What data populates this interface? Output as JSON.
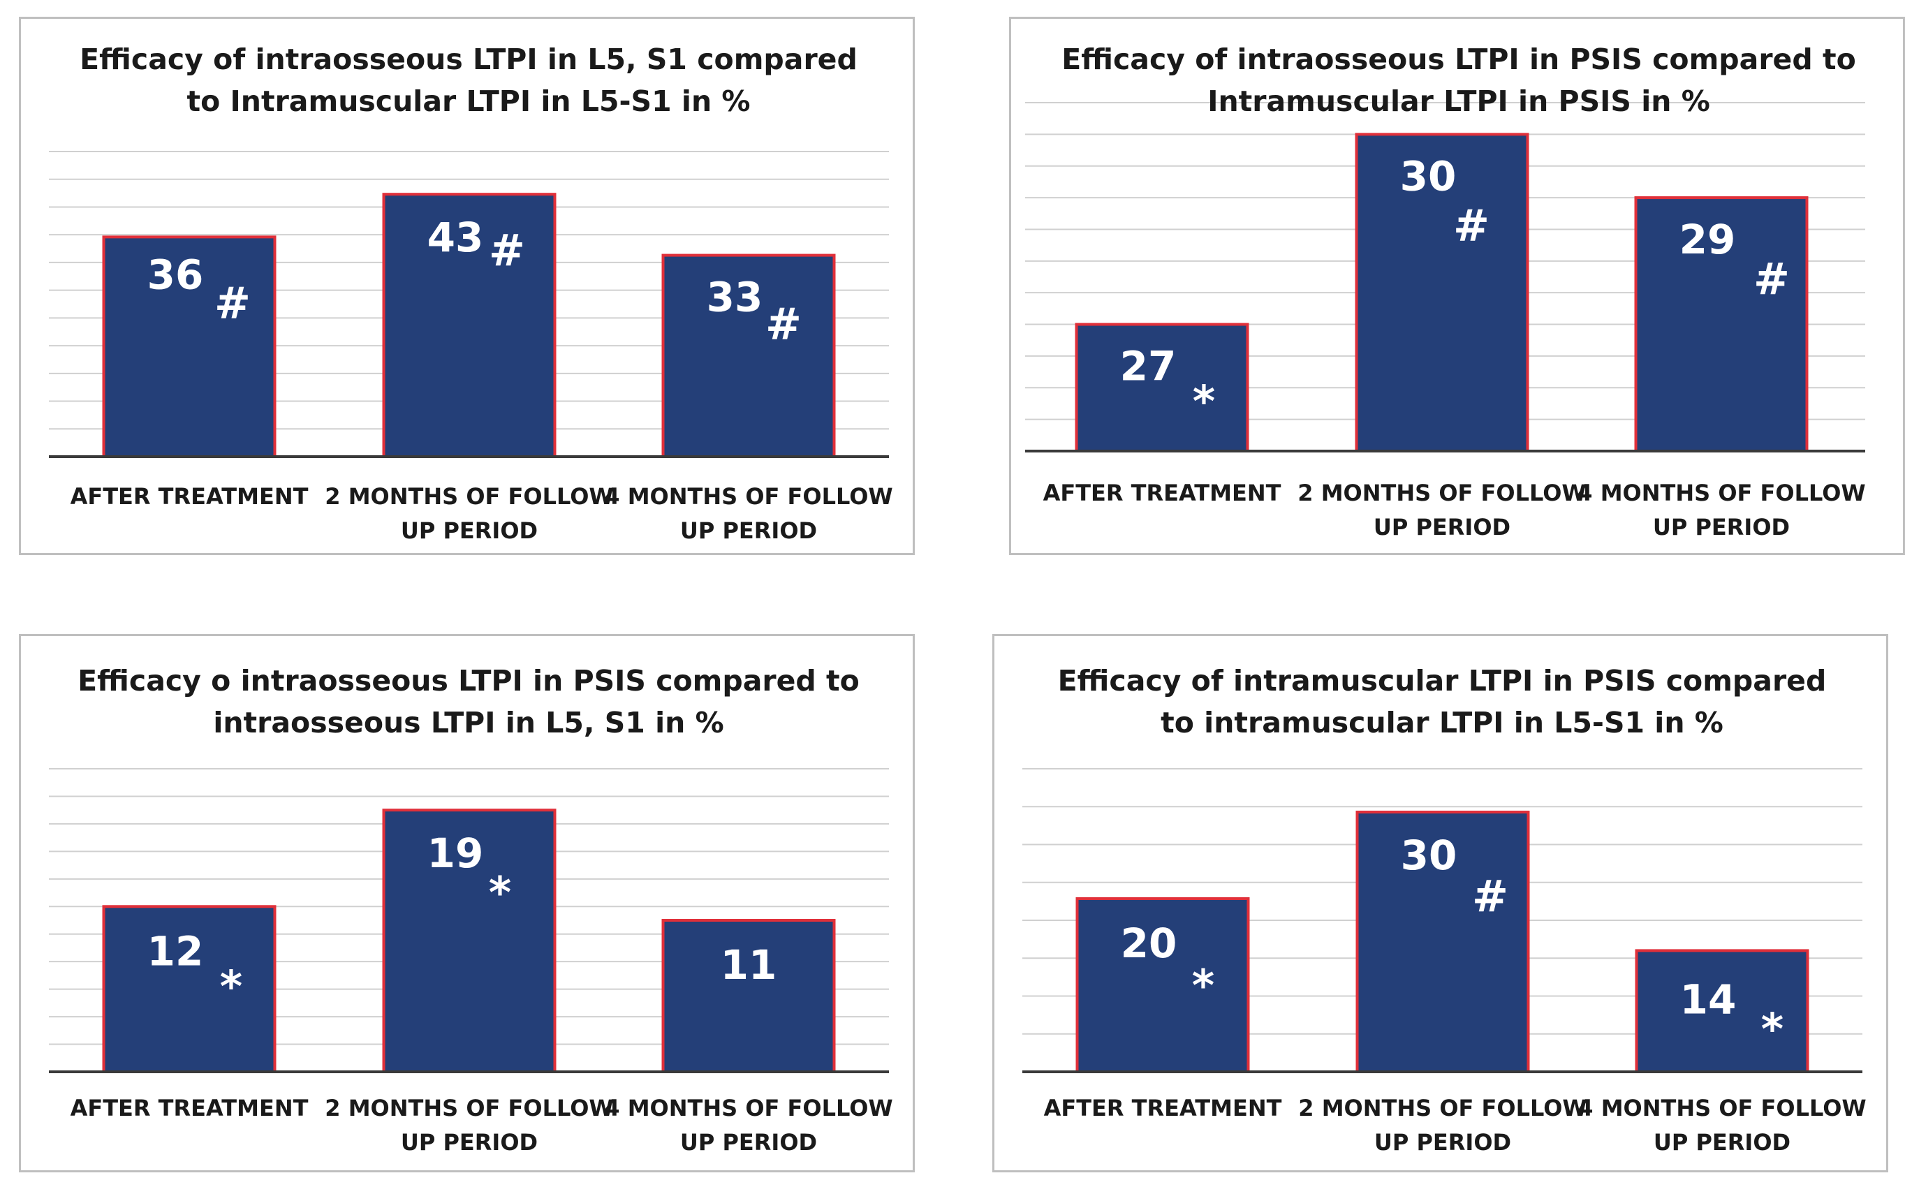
{
  "colors": {
    "bar_fill": "#243f78",
    "bar_stroke": "#e0303a",
    "grid": "#d0d0d0",
    "axis": "#3a3a3a"
  },
  "chart_data": [
    {
      "type": "bar",
      "title": [
        "Efficacy of intraosseous LTPI in L5, S1 compared",
        "to Intramuscular LTPI in L5-S1 in %"
      ],
      "categories": [
        [
          "AFTER TREATMENT"
        ],
        [
          "2  MONTHS OF FOLLOW",
          "UP PERIOD"
        ],
        [
          "4 MONTHS OF FOLLOW",
          "UP PERIOD"
        ]
      ],
      "values": [
        36,
        43,
        33
      ],
      "labels": [
        "36",
        "43",
        "33"
      ],
      "markers": [
        "#",
        "#",
        "#"
      ],
      "ylim": [
        0,
        50
      ],
      "grid": true
    },
    {
      "type": "bar",
      "title": [
        "Efficacy of intraosseous LTPI in PSIS compared to",
        "Intramuscular LTPI in PSIS in %"
      ],
      "categories": [
        [
          "AFTER TREATMENT"
        ],
        [
          "2  MONTHS OF FOLLOW",
          "UP PERIOD"
        ],
        [
          "4 MONTHS OF FOLLOW",
          "UP PERIOD"
        ]
      ],
      "values": [
        27,
        30,
        29
      ],
      "labels": [
        "27",
        "30",
        "29"
      ],
      "markers": [
        "*",
        "#",
        "#"
      ],
      "ylim": [
        25,
        30.5
      ],
      "grid": true
    },
    {
      "type": "bar",
      "title": [
        "Efficacy o intraosseous LTPI in PSIS compared to",
        "intraosseous LTPI in L5, S1 in %"
      ],
      "categories": [
        [
          "AFTER TREATMENT"
        ],
        [
          "2  MONTHS OF FOLLOW",
          "UP PERIOD"
        ],
        [
          "4 MONTHS OF FOLLOW",
          "UP PERIOD"
        ]
      ],
      "values": [
        12,
        19,
        11
      ],
      "labels": [
        "12",
        "19",
        "11"
      ],
      "markers": [
        "*",
        "*",
        ""
      ],
      "ylim": [
        0,
        22
      ],
      "grid": true
    },
    {
      "type": "bar",
      "title": [
        "Efficacy of intramuscular LTPI in PSIS compared",
        "to intramuscular LTPI in L5-S1 in %"
      ],
      "categories": [
        [
          "AFTER TREATMENT"
        ],
        [
          "2  MONTHS OF FOLLOW",
          "UP PERIOD"
        ],
        [
          "4 MONTHS OF FOLLOW",
          "UP PERIOD"
        ]
      ],
      "values": [
        20,
        30,
        14
      ],
      "labels": [
        "20",
        "30",
        "14"
      ],
      "markers": [
        "*",
        "#",
        "*"
      ],
      "ylim": [
        0,
        35
      ],
      "grid": true
    }
  ]
}
